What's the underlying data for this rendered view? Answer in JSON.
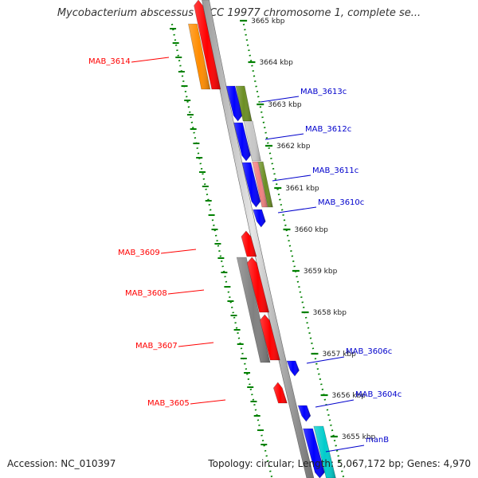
{
  "title": "Mycobacterium abscessus ATCC 19977 chromosome 1, complete se...",
  "footer": {
    "accession": "Accession: NC_010397",
    "summary": "Topology: circular; Length: 5,067,172 bp; Genes: 4,970"
  },
  "colors": {
    "red": "#ff0000",
    "blue": "#0000ff",
    "orange": "#ff8c00",
    "olive": "#6b8e23",
    "gray": "#808080",
    "light_gray": "#c8c8c8",
    "pink": "#f08080",
    "cyan": "#00cccc",
    "tick": "#008000"
  },
  "ticks": [
    "3665 kbp",
    "3664 kbp",
    "3663 kbp",
    "3662 kbp",
    "3661 kbp",
    "3660 kbp",
    "3659 kbp",
    "3658 kbp",
    "3657 kbp",
    "3656 kbp",
    "3655 kbp"
  ],
  "genes": [
    {
      "label": "MAB_3614",
      "strand": "left",
      "color": "red"
    },
    {
      "label": "MAB_3613c",
      "strand": "right",
      "color": "blue"
    },
    {
      "label": "MAB_3612c",
      "strand": "right",
      "color": "blue"
    },
    {
      "label": "MAB_3611c",
      "strand": "right",
      "color": "blue"
    },
    {
      "label": "MAB_3610c",
      "strand": "right",
      "color": "blue"
    },
    {
      "label": "MAB_3609",
      "strand": "left",
      "color": "red"
    },
    {
      "label": "MAB_3608",
      "strand": "left",
      "color": "red"
    },
    {
      "label": "MAB_3607",
      "strand": "left",
      "color": "red"
    },
    {
      "label": "MAB_3606c",
      "strand": "right",
      "color": "blue"
    },
    {
      "label": "MAB_3605",
      "strand": "left",
      "color": "red"
    },
    {
      "label": "MAB_3604c",
      "strand": "right",
      "color": "blue"
    },
    {
      "label": "manB",
      "strand": "right",
      "color": "blue"
    }
  ]
}
